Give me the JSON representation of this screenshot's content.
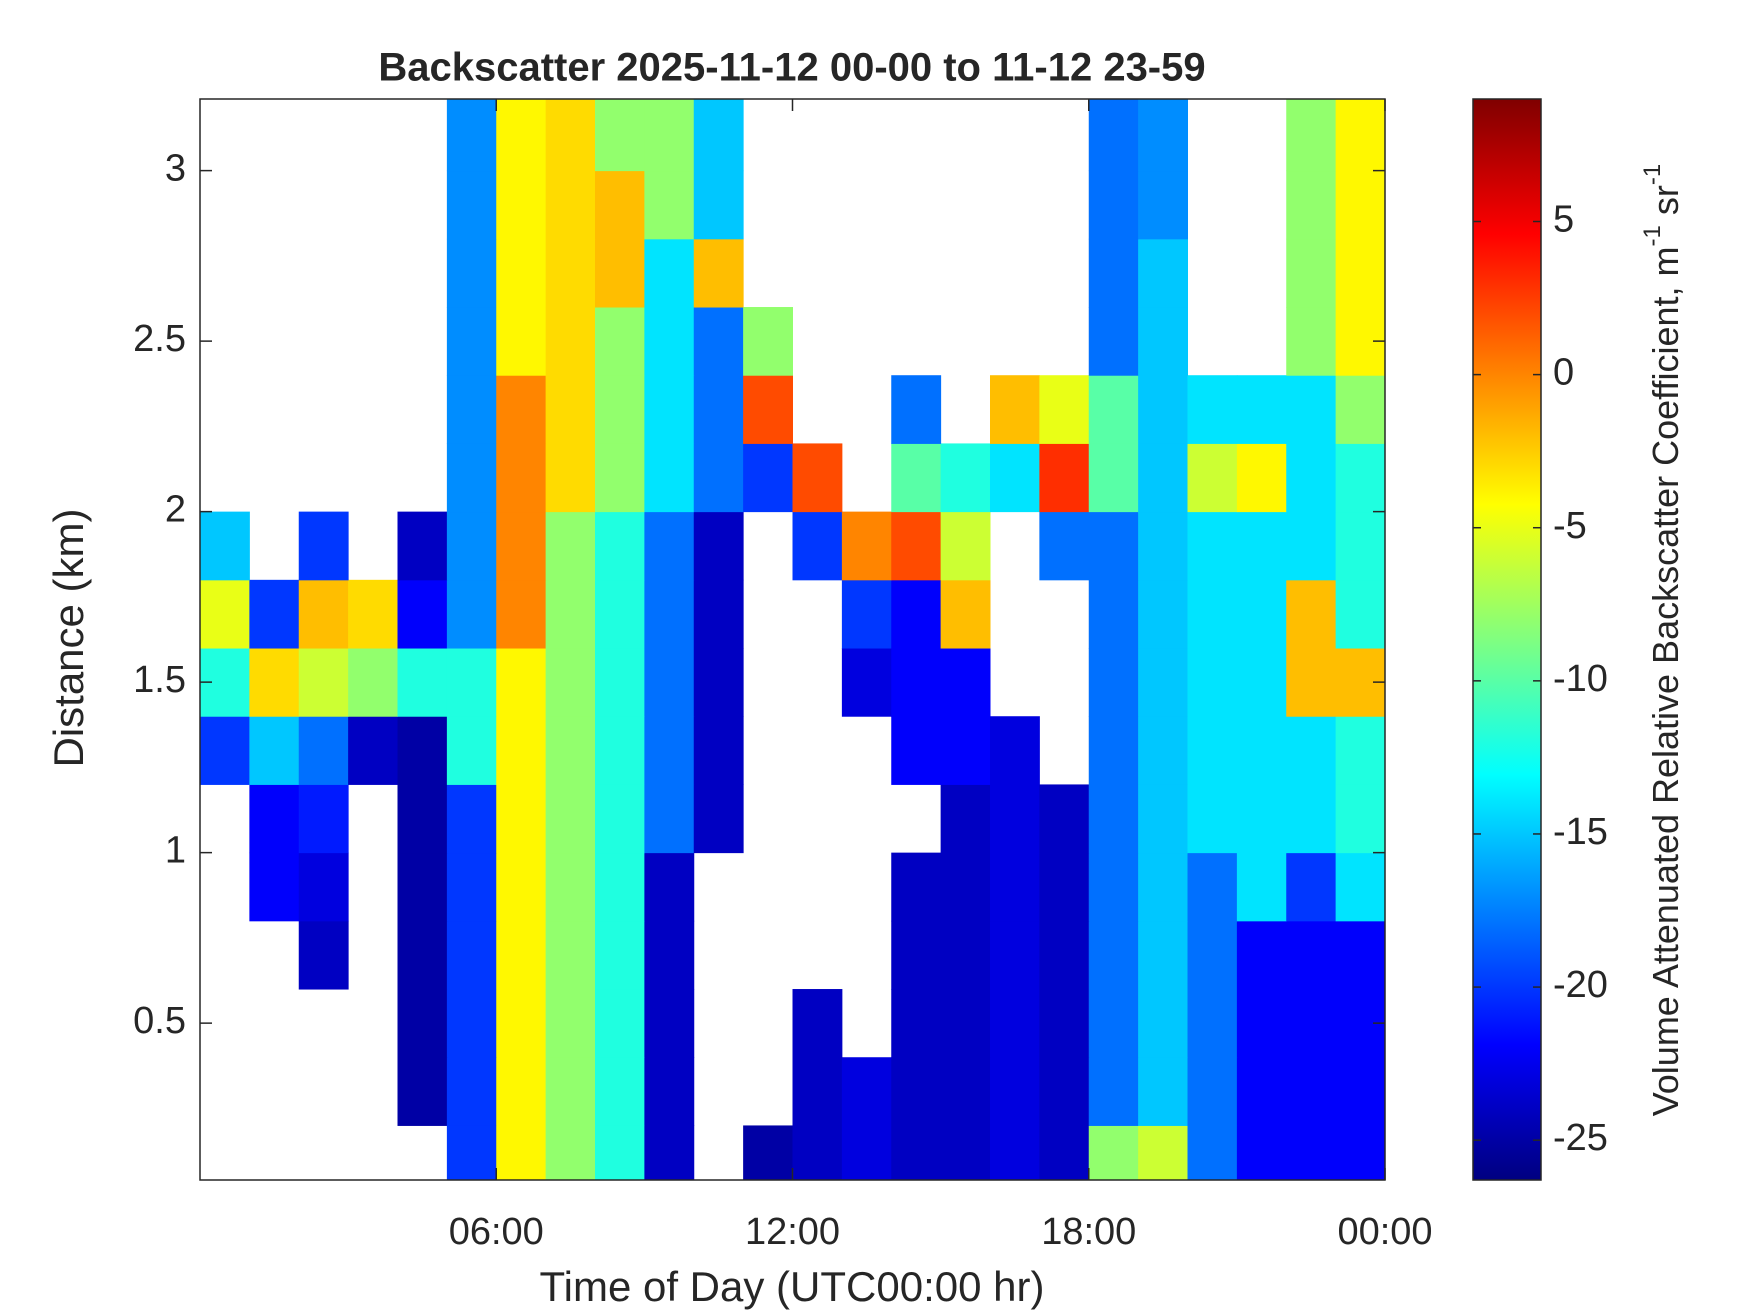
{
  "chart_data": {
    "type": "heatmap",
    "title": "Backscatter 2025-11-12 00-00 to 11-12 23-59",
    "xlabel": "Time of Day (UTC00:00 hr)",
    "ylabel": "Distance (km)",
    "colorbar_label": [
      "Volume Attenuated Relative Backscatter Coefficient, m",
      "-1",
      " sr",
      "-1"
    ],
    "colormap": "jet",
    "xlim": [
      0,
      24
    ],
    "xticks": [
      {
        "value": 6,
        "label": "06:00"
      },
      {
        "value": 12,
        "label": "12:00"
      },
      {
        "value": 18,
        "label": "18:00"
      },
      {
        "value": 24,
        "label": "00:00"
      }
    ],
    "ylim": [
      0.04,
      3.21
    ],
    "yticks": [
      0.5,
      1,
      1.5,
      2,
      2.5,
      3
    ],
    "clim": [
      -26.3,
      9
    ],
    "cticks": [
      -25,
      -20,
      -15,
      -10,
      -5,
      0,
      5
    ],
    "x": [
      0,
      1,
      2,
      3,
      4,
      5,
      6,
      7,
      8,
      9,
      10,
      11,
      12,
      13,
      14,
      15,
      16,
      17,
      18,
      19,
      20,
      21,
      22,
      23,
      24
    ],
    "y": [
      0.04,
      0.2,
      0.4,
      0.6,
      0.8,
      1.0,
      1.2,
      1.4,
      1.6,
      1.8,
      2.0,
      2.2,
      2.4,
      2.6,
      2.8,
      3.0,
      3.21
    ],
    "z": [
      [
        null,
        null,
        null,
        null,
        null,
        -20,
        -4,
        -8,
        -12,
        -24,
        null,
        -25,
        -24,
        -23,
        -24,
        -24,
        -23,
        -24,
        -8,
        -6,
        -18,
        -22,
        -22,
        -22
      ],
      [
        null,
        null,
        null,
        null,
        -25,
        -20,
        -4,
        -8,
        -12,
        -24,
        null,
        null,
        -24,
        -23,
        -24,
        -24,
        -23,
        -24,
        -18,
        -15,
        -18,
        -22,
        -22,
        -22
      ],
      [
        null,
        null,
        null,
        null,
        -25,
        -20,
        -4,
        -8,
        -12,
        -24,
        null,
        null,
        -24,
        null,
        -24,
        -24,
        -23,
        -24,
        -18,
        -15,
        -18,
        -22,
        -22,
        -22
      ],
      [
        null,
        null,
        -24,
        null,
        -25,
        -20,
        -4,
        -8,
        -12,
        -24,
        null,
        null,
        null,
        null,
        -24,
        -24,
        -23,
        -24,
        -18,
        -15,
        -18,
        -22,
        -22,
        -22
      ],
      [
        null,
        -22,
        -23,
        null,
        -25,
        -20,
        -4,
        -8,
        -12,
        -24,
        null,
        null,
        null,
        null,
        -24,
        -24,
        -23,
        -24,
        -18,
        -15,
        -18,
        -14,
        -20,
        -14
      ],
      [
        null,
        -22,
        -21,
        null,
        -25,
        -20,
        -4,
        -8,
        -12,
        -18,
        -24,
        null,
        null,
        null,
        null,
        -24,
        -23,
        -24,
        -18,
        -15,
        -14,
        -14,
        -14,
        -12
      ],
      [
        -20,
        -15,
        -18,
        -24,
        -25,
        -12,
        -4,
        -8,
        -12,
        -18,
        -24,
        null,
        null,
        null,
        -22,
        -22,
        -23,
        null,
        -18,
        -15,
        -14,
        -14,
        -14,
        -12
      ],
      [
        -12,
        -3,
        -6,
        -8,
        -12,
        -12,
        -4,
        -8,
        -12,
        -18,
        -24,
        null,
        null,
        -23,
        -22,
        -22,
        null,
        null,
        -18,
        -15,
        -14,
        -14,
        -2,
        -2
      ],
      [
        -5,
        -20,
        -2,
        -3,
        -22,
        -17,
        0,
        -8,
        -12,
        -18,
        -24,
        null,
        null,
        -20,
        -22,
        -2,
        null,
        null,
        -18,
        -15,
        -14,
        -14,
        -2,
        -12
      ],
      [
        -15,
        null,
        -20,
        null,
        -24,
        -17,
        0,
        -8,
        -12,
        -18,
        -24,
        null,
        -20,
        0,
        2,
        -6,
        null,
        -18,
        -18,
        -15,
        -14,
        -14,
        -14,
        -12
      ],
      [
        null,
        null,
        null,
        null,
        null,
        -17,
        0,
        -3,
        -8,
        -14,
        -18,
        -20,
        2,
        null,
        -10,
        -12,
        -14,
        3,
        -10,
        -15,
        -6,
        -4,
        -14,
        -12
      ],
      [
        null,
        null,
        null,
        null,
        null,
        -17,
        0,
        -3,
        -8,
        -14,
        -18,
        2,
        null,
        null,
        -18,
        null,
        -2,
        -5,
        -10,
        -15,
        -14,
        -14,
        -14,
        -8
      ],
      [
        null,
        null,
        null,
        null,
        null,
        -17,
        -4,
        -3,
        -8,
        -14,
        -18,
        -8,
        null,
        null,
        null,
        null,
        null,
        null,
        -18,
        -15,
        null,
        null,
        -8,
        -4
      ],
      [
        null,
        null,
        null,
        null,
        null,
        -17,
        -4,
        -3,
        -2,
        -14,
        -2,
        null,
        null,
        null,
        null,
        null,
        null,
        null,
        -18,
        -15,
        null,
        null,
        -8,
        -4
      ],
      [
        null,
        null,
        null,
        null,
        null,
        -17,
        -4,
        -3,
        -2,
        -8,
        -15,
        null,
        null,
        null,
        null,
        null,
        null,
        null,
        -18,
        -17,
        null,
        null,
        -8,
        -4
      ],
      [
        null,
        null,
        null,
        null,
        null,
        -17,
        -4,
        -3,
        -8,
        -8,
        -15,
        null,
        null,
        null,
        null,
        null,
        null,
        null,
        -18,
        -17,
        null,
        null,
        -8,
        -4
      ]
    ]
  }
}
